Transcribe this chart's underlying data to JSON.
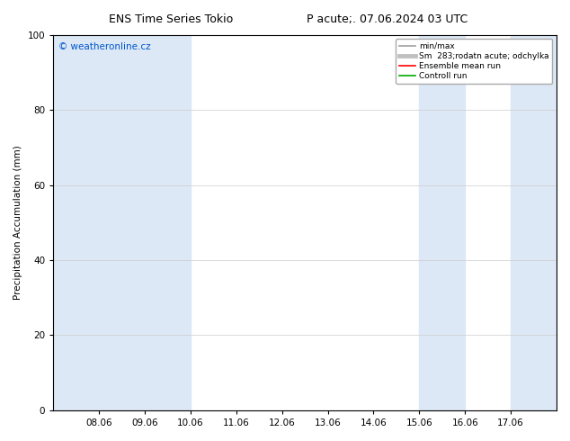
{
  "title_left": "ENS Time Series Tokio",
  "title_right": "P acute;. 07.06.2024 03 UTC",
  "ylabel": "Precipitation Accumulation (mm)",
  "ylim": [
    0,
    100
  ],
  "yticks": [
    0,
    20,
    40,
    60,
    80,
    100
  ],
  "xtick_labels": [
    "08.06",
    "09.06",
    "10.06",
    "11.06",
    "12.06",
    "13.06",
    "14.06",
    "15.06",
    "16.06",
    "17.06"
  ],
  "watermark": "© weatheronline.cz",
  "bg_color": "#ffffff",
  "plot_bg_color": "#ffffff",
  "shade_color": "#dce8f5",
  "legend_items": [
    {
      "label": "min/max",
      "color": "#a0a0a0",
      "lw": 1.2
    },
    {
      "label": "Sm  283;rodatn acute; odchylka",
      "color": "#c0c0c0",
      "lw": 3.5
    },
    {
      "label": "Ensemble mean run",
      "color": "#ff0000",
      "lw": 1.2
    },
    {
      "label": "Controll run",
      "color": "#00aa00",
      "lw": 1.2
    }
  ],
  "xstart_day": 7,
  "xend_day": 18,
  "shaded_day_starts": [
    7,
    9,
    15,
    17
  ],
  "shaded_day_ends": [
    9,
    10,
    16,
    18
  ]
}
